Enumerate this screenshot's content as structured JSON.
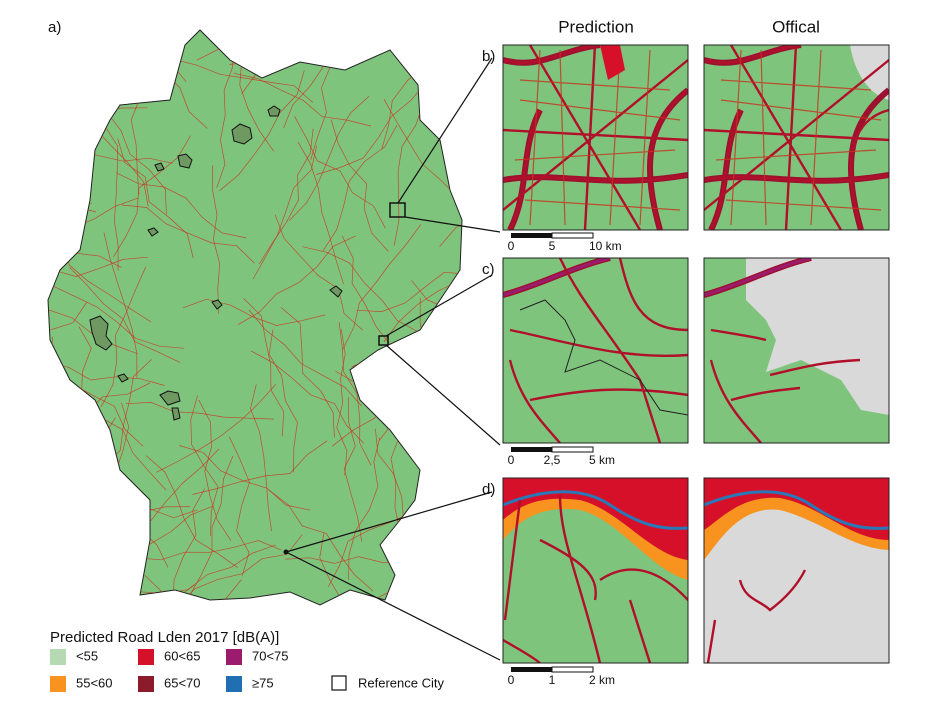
{
  "panel_labels": [
    "a)",
    "b)",
    "c)",
    "d)"
  ],
  "column_titles": [
    "Prediction",
    "Offical"
  ],
  "scale_bars": [
    {
      "labels": [
        "0",
        "5",
        "10 km"
      ]
    },
    {
      "labels": [
        "0",
        "2,5",
        "5 km"
      ]
    },
    {
      "labels": [
        "0",
        "1",
        "2 km"
      ]
    }
  ],
  "legend": {
    "title": "Predicted Road Lden 2017 [dB(A)]",
    "items": [
      {
        "label": "<55",
        "color": "#b5d9b1"
      },
      {
        "label": "55<60",
        "color": "#f7931e"
      },
      {
        "label": "60<65",
        "color": "#d7102a"
      },
      {
        "label": "65<70",
        "color": "#8b1a2a"
      },
      {
        "label": "70<75",
        "color": "#9b1b6e"
      },
      {
        "label": "≥75",
        "color": "#1f6fb2"
      }
    ],
    "reference": "Reference City"
  }
}
